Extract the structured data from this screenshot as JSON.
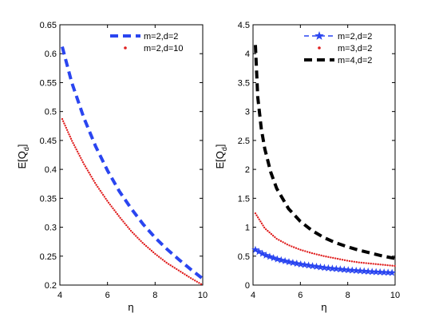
{
  "chart_data": [
    {
      "type": "line",
      "xlabel": "η",
      "ylabel_base": "E[Q",
      "ylabel_sub": "d",
      "ylabel_close": "]",
      "xlim": [
        4,
        10
      ],
      "ylim": [
        0.2,
        0.65
      ],
      "xticks": [
        4,
        6,
        8,
        10
      ],
      "xtick_labels": [
        "4",
        "6",
        "8",
        "10"
      ],
      "yticks": [
        0.2,
        0.25,
        0.3,
        0.35,
        0.4,
        0.45,
        0.5,
        0.55,
        0.6,
        0.65
      ],
      "ytick_labels": [
        "0.2",
        "0.25",
        "0.3",
        "0.35",
        "0.4",
        "0.45",
        "0.5",
        "0.55",
        "0.6",
        "0.65"
      ],
      "grid": false,
      "legend_position": "top-right",
      "series": [
        {
          "name": "m=2,d=2",
          "color": "#2a45f0",
          "style": "dashed-thick",
          "marker": "none",
          "x": [
            4.1,
            4.5,
            5,
            5.5,
            6,
            6.5,
            7,
            7.5,
            8,
            8.5,
            9,
            9.5,
            10
          ],
          "y": [
            0.612,
            0.55,
            0.49,
            0.44,
            0.398,
            0.362,
            0.332,
            0.305,
            0.282,
            0.262,
            0.244,
            0.227,
            0.211
          ]
        },
        {
          "name": "m=2,d=10",
          "color": "#e02020",
          "style": "dotted",
          "marker": "dot",
          "x": [
            4.1,
            4.5,
            5,
            5.5,
            6,
            6.5,
            7,
            7.5,
            8,
            8.5,
            9,
            9.5,
            10
          ],
          "y": [
            0.487,
            0.45,
            0.41,
            0.375,
            0.345,
            0.318,
            0.293,
            0.272,
            0.254,
            0.238,
            0.225,
            0.212,
            0.2
          ]
        }
      ]
    },
    {
      "type": "line",
      "xlabel": "η",
      "ylabel_base": "E[Q",
      "ylabel_sub": "d",
      "ylabel_close": "]",
      "xlim": [
        4,
        10
      ],
      "ylim": [
        0,
        4.5
      ],
      "xticks": [
        4,
        6,
        8,
        10
      ],
      "xtick_labels": [
        "4",
        "6",
        "8",
        "10"
      ],
      "yticks": [
        0,
        0.5,
        1,
        1.5,
        2,
        2.5,
        3,
        3.5,
        4,
        4.5
      ],
      "ytick_labels": [
        "0",
        "0.5",
        "1",
        "1.5",
        "2",
        "2.5",
        "3",
        "3.5",
        "4",
        "4.5"
      ],
      "grid": false,
      "legend_position": "top-right",
      "series": [
        {
          "name": "m=2,d=2",
          "color": "#2a45f0",
          "style": "dashed-thin",
          "marker": "star",
          "x": [
            4.1,
            4.5,
            5,
            5.5,
            6,
            6.5,
            7,
            7.5,
            8,
            8.5,
            9,
            9.5,
            10
          ],
          "y": [
            0.61,
            0.52,
            0.45,
            0.4,
            0.36,
            0.33,
            0.3,
            0.28,
            0.26,
            0.245,
            0.23,
            0.22,
            0.21
          ]
        },
        {
          "name": "m=3,d=2",
          "color": "#e02020",
          "style": "dotted",
          "marker": "dot",
          "x": [
            4.1,
            4.5,
            5,
            5.5,
            6,
            6.5,
            7,
            7.5,
            8,
            8.5,
            9,
            9.5,
            10
          ],
          "y": [
            1.24,
            0.98,
            0.8,
            0.69,
            0.61,
            0.55,
            0.5,
            0.46,
            0.42,
            0.39,
            0.37,
            0.35,
            0.33
          ]
        },
        {
          "name": "m=4,d=2",
          "color": "#000000",
          "style": "dashed-thick",
          "marker": "none",
          "x": [
            4.1,
            4.2,
            4.35,
            4.5,
            4.75,
            5,
            5.5,
            6,
            6.5,
            7,
            7.5,
            8,
            8.5,
            9,
            9.5,
            10
          ],
          "y": [
            4.15,
            3.25,
            2.7,
            2.35,
            1.95,
            1.67,
            1.32,
            1.1,
            0.94,
            0.82,
            0.73,
            0.66,
            0.6,
            0.55,
            0.5,
            0.46
          ]
        }
      ]
    }
  ]
}
